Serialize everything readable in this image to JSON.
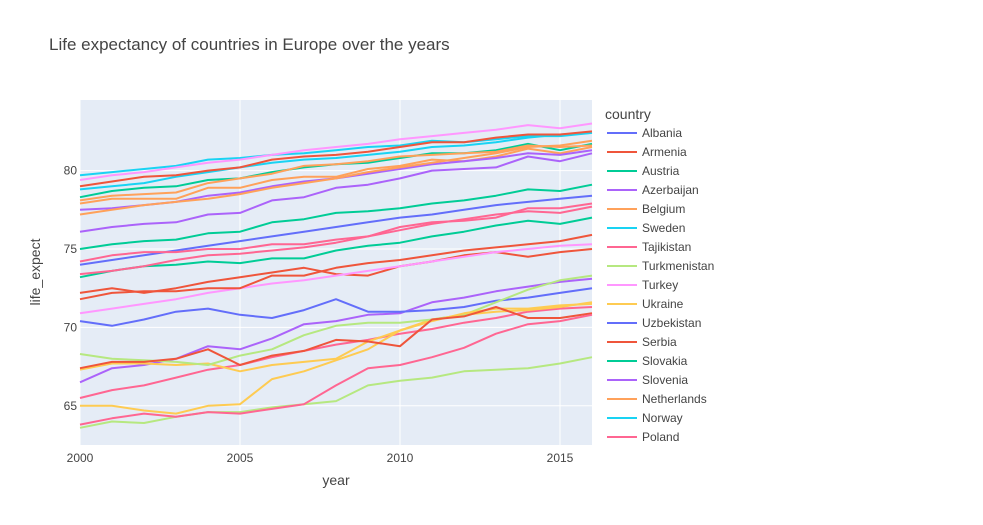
{
  "chart_data": {
    "type": "line",
    "title": "Life expectancy of countries in Europe over the years",
    "xlabel": "year",
    "ylabel": "life_expect",
    "xlim": [
      2000,
      2016
    ],
    "ylim": [
      62.5,
      84.5
    ],
    "x_ticks": [
      2000,
      2005,
      2010,
      2015
    ],
    "y_ticks": [
      65,
      70,
      75,
      80
    ],
    "grid": true,
    "legend_title": "country",
    "legend_position": "right",
    "background": "#e5ecf6",
    "x": [
      2000,
      2001,
      2002,
      2003,
      2004,
      2005,
      2006,
      2007,
      2008,
      2009,
      2010,
      2011,
      2012,
      2013,
      2014,
      2015,
      2016
    ],
    "series": [
      {
        "name": "Albania",
        "color": "#636efa",
        "values": [
          74.0,
          74.3,
          74.6,
          74.9,
          75.2,
          75.5,
          75.8,
          76.1,
          76.4,
          76.7,
          77.0,
          77.2,
          77.5,
          77.8,
          78.0,
          78.2,
          78.4
        ]
      },
      {
        "name": "Armenia",
        "color": "#ef553b",
        "values": [
          72.2,
          72.5,
          72.2,
          72.5,
          72.9,
          73.2,
          73.5,
          73.8,
          73.4,
          73.3,
          73.9,
          74.2,
          74.6,
          74.8,
          74.5,
          74.8,
          75.0
        ]
      },
      {
        "name": "Austria",
        "color": "#00cc96",
        "values": [
          78.3,
          78.7,
          78.9,
          79.0,
          79.4,
          79.5,
          79.9,
          80.2,
          80.4,
          80.5,
          80.8,
          81.1,
          81.1,
          81.3,
          81.7,
          81.3,
          81.7
        ]
      },
      {
        "name": "Azerbaijan",
        "color": "#ab63fa",
        "values": [
          66.5,
          67.4,
          67.6,
          68.0,
          68.8,
          68.6,
          69.3,
          70.2,
          70.4,
          70.8,
          70.9,
          71.6,
          71.9,
          72.3,
          72.6,
          72.9,
          73.1
        ]
      },
      {
        "name": "Belgium",
        "color": "#ffa15a",
        "values": [
          77.9,
          78.2,
          78.2,
          78.2,
          78.9,
          78.9,
          79.4,
          79.6,
          79.6,
          80.1,
          80.3,
          80.7,
          80.6,
          80.9,
          81.4,
          81.1,
          81.5
        ]
      },
      {
        "name": "Sweden",
        "color": "#19d3f3",
        "values": [
          79.7,
          79.9,
          80.1,
          80.3,
          80.7,
          80.8,
          81.0,
          81.1,
          81.3,
          81.5,
          81.6,
          81.9,
          81.8,
          82.0,
          82.2,
          82.2,
          82.4
        ]
      },
      {
        "name": "Tajikistan",
        "color": "#ff6692",
        "values": [
          65.5,
          66.0,
          66.3,
          66.8,
          67.3,
          67.6,
          68.1,
          68.5,
          68.9,
          69.2,
          69.6,
          69.9,
          70.3,
          70.6,
          71.0,
          71.2,
          71.3
        ]
      },
      {
        "name": "Turkmenistan",
        "color": "#b6e880",
        "values": [
          63.6,
          64.0,
          63.9,
          64.3,
          64.6,
          64.6,
          64.9,
          65.1,
          65.3,
          66.3,
          66.6,
          66.8,
          67.2,
          67.3,
          67.4,
          67.7,
          68.1
        ]
      },
      {
        "name": "Turkey",
        "color": "#ff97ff",
        "values": [
          70.9,
          71.2,
          71.5,
          71.8,
          72.2,
          72.5,
          72.8,
          73.0,
          73.3,
          73.6,
          73.9,
          74.2,
          74.5,
          74.8,
          75.0,
          75.2,
          75.3
        ]
      },
      {
        "name": "Ukraine",
        "color": "#fecb52",
        "values": [
          67.3,
          67.7,
          67.7,
          67.6,
          67.7,
          67.2,
          67.6,
          67.8,
          68.0,
          69.1,
          69.8,
          70.5,
          70.8,
          71.0,
          71.1,
          71.3,
          71.6
        ]
      },
      {
        "name": "Uzbekistan",
        "color": "#636efa",
        "values": [
          70.4,
          70.1,
          70.5,
          71.0,
          71.2,
          70.8,
          70.6,
          71.1,
          71.8,
          71.0,
          71.0,
          71.1,
          71.3,
          71.7,
          71.9,
          72.2,
          72.5
        ]
      },
      {
        "name": "Serbia",
        "color": "#ef553b",
        "values": [
          71.8,
          72.2,
          72.3,
          72.3,
          72.5,
          72.5,
          73.3,
          73.3,
          73.8,
          74.1,
          74.3,
          74.6,
          74.9,
          75.1,
          75.3,
          75.5,
          75.9
        ]
      },
      {
        "name": "Slovakia",
        "color": "#00cc96",
        "values": [
          73.2,
          73.6,
          73.9,
          74.0,
          74.2,
          74.1,
          74.4,
          74.4,
          74.9,
          75.2,
          75.4,
          75.8,
          76.1,
          76.5,
          76.8,
          76.6,
          77.0
        ]
      },
      {
        "name": "Slovenia",
        "color": "#ab63fa",
        "values": [
          76.1,
          76.4,
          76.6,
          76.7,
          77.2,
          77.3,
          78.1,
          78.3,
          78.9,
          79.1,
          79.5,
          80.0,
          80.1,
          80.2,
          80.9,
          80.6,
          81.1
        ]
      },
      {
        "name": "Netherlands",
        "color": "#ffa15a",
        "values": [
          78.1,
          78.4,
          78.5,
          78.6,
          79.2,
          79.5,
          79.8,
          80.3,
          80.4,
          80.6,
          80.9,
          81.0,
          81.1,
          81.2,
          81.6,
          81.5,
          81.6
        ]
      },
      {
        "name": "Norway",
        "color": "#19d3f3",
        "values": [
          78.8,
          79.0,
          79.2,
          79.6,
          79.9,
          80.2,
          80.5,
          80.7,
          80.8,
          81.0,
          81.2,
          81.5,
          81.6,
          81.8,
          82.1,
          82.3,
          82.4
        ]
      },
      {
        "name": "Poland",
        "color": "#ff6692",
        "values": [
          74.2,
          74.6,
          74.8,
          74.8,
          75.0,
          75.0,
          75.3,
          75.3,
          75.6,
          75.8,
          76.4,
          76.7,
          76.8,
          77.0,
          77.6,
          77.6,
          77.9
        ]
      },
      {
        "name": "",
        "color": "#b6e880",
        "values": [
          68.3,
          68.0,
          67.9,
          67.8,
          67.6,
          68.2,
          68.6,
          69.5,
          70.1,
          70.3,
          70.3,
          70.5,
          70.8,
          71.6,
          72.4,
          73.0,
          73.3
        ]
      },
      {
        "name": "",
        "color": "#ff97ff",
        "values": [
          79.4,
          79.7,
          79.9,
          80.2,
          80.5,
          80.7,
          81.0,
          81.3,
          81.5,
          81.7,
          82.0,
          82.2,
          82.4,
          82.6,
          82.9,
          82.7,
          83.0
        ]
      },
      {
        "name": "",
        "color": "#fecb52",
        "values": [
          65.0,
          65.0,
          64.7,
          64.5,
          65.0,
          65.1,
          66.7,
          67.2,
          67.9,
          68.6,
          69.8,
          70.4,
          70.9,
          71.2,
          71.2,
          71.4,
          71.5
        ]
      },
      {
        "name": "",
        "color": "#ef553b",
        "values": [
          67.4,
          67.8,
          67.8,
          68.0,
          68.6,
          67.6,
          68.2,
          68.5,
          69.2,
          69.1,
          68.8,
          70.5,
          70.7,
          71.3,
          70.6,
          70.6,
          70.9
        ]
      },
      {
        "name": "",
        "color": "#ef553b",
        "values": [
          79.0,
          79.3,
          79.6,
          79.7,
          80.0,
          80.2,
          80.7,
          80.9,
          81.0,
          81.2,
          81.5,
          81.8,
          81.8,
          82.1,
          82.3,
          82.3,
          82.5
        ]
      },
      {
        "name": "",
        "color": "#ff6692",
        "values": [
          63.8,
          64.2,
          64.5,
          64.3,
          64.6,
          64.5,
          64.8,
          65.1,
          66.3,
          67.4,
          67.6,
          68.1,
          68.7,
          69.6,
          70.2,
          70.4,
          70.8
        ]
      },
      {
        "name": "",
        "color": "#00cc96",
        "values": [
          75.0,
          75.3,
          75.5,
          75.6,
          76.0,
          76.1,
          76.7,
          76.9,
          77.3,
          77.4,
          77.6,
          77.9,
          78.1,
          78.4,
          78.8,
          78.7,
          79.1
        ]
      },
      {
        "name": "",
        "color": "#ab63fa",
        "values": [
          77.5,
          77.6,
          77.8,
          78.0,
          78.4,
          78.6,
          79.0,
          79.3,
          79.5,
          79.8,
          80.1,
          80.4,
          80.6,
          80.8,
          81.1,
          81.0,
          81.3
        ]
      },
      {
        "name": "",
        "color": "#ffa15a",
        "values": [
          77.2,
          77.5,
          77.8,
          78.0,
          78.2,
          78.5,
          78.9,
          79.2,
          79.5,
          79.9,
          80.2,
          80.5,
          80.8,
          81.1,
          81.5,
          81.6,
          81.9
        ]
      },
      {
        "name": "",
        "color": "#ff6692",
        "values": [
          73.4,
          73.6,
          73.9,
          74.3,
          74.6,
          74.7,
          74.9,
          75.1,
          75.4,
          75.8,
          76.2,
          76.6,
          76.9,
          77.2,
          77.4,
          77.3,
          77.7
        ]
      }
    ]
  }
}
